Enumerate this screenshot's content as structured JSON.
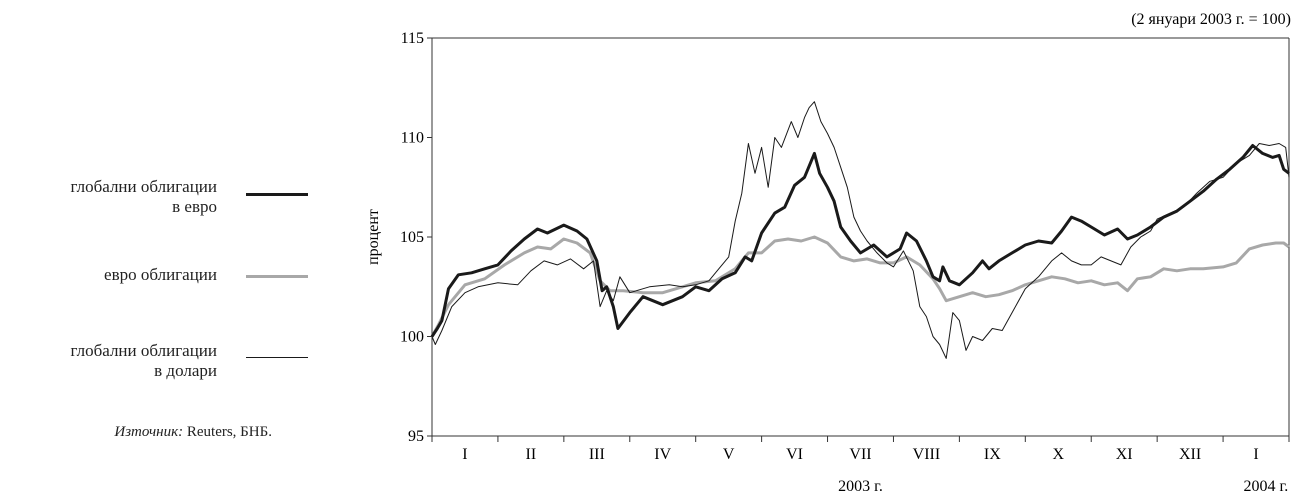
{
  "chart_data": {
    "type": "line",
    "note": "(2 януари 2003 г. = 100)",
    "ylabel": "процент",
    "ylim": [
      95,
      115
    ],
    "yticks": [
      95,
      100,
      105,
      110,
      115
    ],
    "xlim": [
      0,
      13
    ],
    "month_labels": [
      "I",
      "II",
      "III",
      "IV",
      "V",
      "VI",
      "VII",
      "VIII",
      "IX",
      "X",
      "XI",
      "XII",
      "I"
    ],
    "year_labels": [
      {
        "text": "2003 г.",
        "x": 6.5
      },
      {
        "text": "2004 г.",
        "x": 12.65
      }
    ],
    "legend_placement": "left",
    "grid": false,
    "series": [
      {
        "name": "глобални облигации в евро",
        "color": "#1a1a1a",
        "width": 3,
        "points": [
          [
            0,
            100
          ],
          [
            0.08,
            100.4
          ],
          [
            0.15,
            100.8
          ],
          [
            0.25,
            102.4
          ],
          [
            0.4,
            103.1
          ],
          [
            0.6,
            103.2
          ],
          [
            0.8,
            103.4
          ],
          [
            1.0,
            103.6
          ],
          [
            1.2,
            104.3
          ],
          [
            1.4,
            104.9
          ],
          [
            1.6,
            105.4
          ],
          [
            1.75,
            105.2
          ],
          [
            2.0,
            105.6
          ],
          [
            2.2,
            105.3
          ],
          [
            2.35,
            104.9
          ],
          [
            2.5,
            103.8
          ],
          [
            2.58,
            102.3
          ],
          [
            2.65,
            102.5
          ],
          [
            2.75,
            101.5
          ],
          [
            2.82,
            100.4
          ],
          [
            3.0,
            101.2
          ],
          [
            3.2,
            102.0
          ],
          [
            3.5,
            101.6
          ],
          [
            3.8,
            102.0
          ],
          [
            4.0,
            102.5
          ],
          [
            4.2,
            102.3
          ],
          [
            4.4,
            102.9
          ],
          [
            4.6,
            103.2
          ],
          [
            4.75,
            104.0
          ],
          [
            4.85,
            103.8
          ],
          [
            5.0,
            105.2
          ],
          [
            5.2,
            106.2
          ],
          [
            5.35,
            106.5
          ],
          [
            5.5,
            107.6
          ],
          [
            5.65,
            108.0
          ],
          [
            5.75,
            108.8
          ],
          [
            5.8,
            109.2
          ],
          [
            5.88,
            108.2
          ],
          [
            6.0,
            107.5
          ],
          [
            6.1,
            106.8
          ],
          [
            6.2,
            105.5
          ],
          [
            6.35,
            104.8
          ],
          [
            6.5,
            104.2
          ],
          [
            6.7,
            104.6
          ],
          [
            6.9,
            104.0
          ],
          [
            7.1,
            104.4
          ],
          [
            7.2,
            105.2
          ],
          [
            7.35,
            104.8
          ],
          [
            7.5,
            103.8
          ],
          [
            7.6,
            103.0
          ],
          [
            7.7,
            102.8
          ],
          [
            7.75,
            103.5
          ],
          [
            7.85,
            102.8
          ],
          [
            8.0,
            102.6
          ],
          [
            8.2,
            103.2
          ],
          [
            8.35,
            103.8
          ],
          [
            8.45,
            103.4
          ],
          [
            8.6,
            103.8
          ],
          [
            8.8,
            104.2
          ],
          [
            9.0,
            104.6
          ],
          [
            9.2,
            104.8
          ],
          [
            9.4,
            104.7
          ],
          [
            9.55,
            105.3
          ],
          [
            9.7,
            106.0
          ],
          [
            9.85,
            105.8
          ],
          [
            10.0,
            105.5
          ],
          [
            10.2,
            105.1
          ],
          [
            10.4,
            105.4
          ],
          [
            10.55,
            104.9
          ],
          [
            10.7,
            105.1
          ],
          [
            10.9,
            105.5
          ],
          [
            11.1,
            106.0
          ],
          [
            11.3,
            106.3
          ],
          [
            11.5,
            106.8
          ],
          [
            11.7,
            107.3
          ],
          [
            11.9,
            107.9
          ],
          [
            12.1,
            108.4
          ],
          [
            12.3,
            109.0
          ],
          [
            12.45,
            109.6
          ],
          [
            12.6,
            109.2
          ],
          [
            12.75,
            109.0
          ],
          [
            12.85,
            109.1
          ],
          [
            12.92,
            108.4
          ],
          [
            13.0,
            108.2
          ]
        ]
      },
      {
        "name": "евро облигации",
        "color": "#a8a8a8",
        "width": 3,
        "points": [
          [
            0,
            100
          ],
          [
            0.1,
            100.6
          ],
          [
            0.25,
            101.6
          ],
          [
            0.5,
            102.6
          ],
          [
            0.8,
            102.9
          ],
          [
            1.1,
            103.6
          ],
          [
            1.4,
            104.2
          ],
          [
            1.6,
            104.5
          ],
          [
            1.8,
            104.4
          ],
          [
            2.0,
            104.9
          ],
          [
            2.2,
            104.7
          ],
          [
            2.4,
            104.2
          ],
          [
            2.55,
            102.8
          ],
          [
            2.7,
            102.3
          ],
          [
            2.9,
            102.3
          ],
          [
            3.2,
            102.2
          ],
          [
            3.5,
            102.2
          ],
          [
            3.8,
            102.5
          ],
          [
            4.0,
            102.7
          ],
          [
            4.3,
            102.8
          ],
          [
            4.6,
            103.4
          ],
          [
            4.8,
            104.2
          ],
          [
            5.0,
            104.2
          ],
          [
            5.2,
            104.8
          ],
          [
            5.4,
            104.9
          ],
          [
            5.6,
            104.8
          ],
          [
            5.8,
            105.0
          ],
          [
            6.0,
            104.7
          ],
          [
            6.2,
            104.0
          ],
          [
            6.4,
            103.8
          ],
          [
            6.6,
            103.9
          ],
          [
            6.8,
            103.7
          ],
          [
            7.0,
            103.7
          ],
          [
            7.2,
            104.0
          ],
          [
            7.4,
            103.6
          ],
          [
            7.6,
            102.9
          ],
          [
            7.7,
            102.4
          ],
          [
            7.8,
            101.8
          ],
          [
            8.0,
            102.0
          ],
          [
            8.2,
            102.2
          ],
          [
            8.4,
            102.0
          ],
          [
            8.6,
            102.1
          ],
          [
            8.8,
            102.3
          ],
          [
            9.0,
            102.6
          ],
          [
            9.2,
            102.8
          ],
          [
            9.4,
            103.0
          ],
          [
            9.6,
            102.9
          ],
          [
            9.8,
            102.7
          ],
          [
            10.0,
            102.8
          ],
          [
            10.2,
            102.6
          ],
          [
            10.4,
            102.7
          ],
          [
            10.55,
            102.3
          ],
          [
            10.7,
            102.9
          ],
          [
            10.9,
            103.0
          ],
          [
            11.1,
            103.4
          ],
          [
            11.3,
            103.3
          ],
          [
            11.5,
            103.4
          ],
          [
            11.7,
            103.4
          ],
          [
            12.0,
            103.5
          ],
          [
            12.2,
            103.7
          ],
          [
            12.4,
            104.4
          ],
          [
            12.6,
            104.6
          ],
          [
            12.8,
            104.7
          ],
          [
            12.92,
            104.7
          ],
          [
            13.0,
            104.5
          ]
        ]
      },
      {
        "name": "глобални облигации в долари",
        "color": "#1a1a1a",
        "width": 1,
        "points": [
          [
            0,
            100
          ],
          [
            0.05,
            99.6
          ],
          [
            0.15,
            100.3
          ],
          [
            0.3,
            101.5
          ],
          [
            0.5,
            102.2
          ],
          [
            0.7,
            102.5
          ],
          [
            1.0,
            102.7
          ],
          [
            1.3,
            102.6
          ],
          [
            1.5,
            103.3
          ],
          [
            1.7,
            103.8
          ],
          [
            1.9,
            103.6
          ],
          [
            2.1,
            103.9
          ],
          [
            2.3,
            103.4
          ],
          [
            2.45,
            103.8
          ],
          [
            2.55,
            101.5
          ],
          [
            2.65,
            102.3
          ],
          [
            2.75,
            101.8
          ],
          [
            2.85,
            103.0
          ],
          [
            3.0,
            102.2
          ],
          [
            3.3,
            102.5
          ],
          [
            3.6,
            102.6
          ],
          [
            3.8,
            102.5
          ],
          [
            4.0,
            102.6
          ],
          [
            4.2,
            102.8
          ],
          [
            4.35,
            103.4
          ],
          [
            4.5,
            104.0
          ],
          [
            4.6,
            105.8
          ],
          [
            4.7,
            107.2
          ],
          [
            4.8,
            109.7
          ],
          [
            4.9,
            108.2
          ],
          [
            5.0,
            109.5
          ],
          [
            5.1,
            107.5
          ],
          [
            5.2,
            110.0
          ],
          [
            5.3,
            109.5
          ],
          [
            5.45,
            110.8
          ],
          [
            5.55,
            110.0
          ],
          [
            5.65,
            111.0
          ],
          [
            5.72,
            111.5
          ],
          [
            5.8,
            111.8
          ],
          [
            5.9,
            110.8
          ],
          [
            6.0,
            110.2
          ],
          [
            6.1,
            109.5
          ],
          [
            6.2,
            108.5
          ],
          [
            6.3,
            107.5
          ],
          [
            6.4,
            106.0
          ],
          [
            6.5,
            105.3
          ],
          [
            6.6,
            104.8
          ],
          [
            6.75,
            104.2
          ],
          [
            6.9,
            103.7
          ],
          [
            7.0,
            103.5
          ],
          [
            7.15,
            104.3
          ],
          [
            7.3,
            103.3
          ],
          [
            7.4,
            101.5
          ],
          [
            7.5,
            101.0
          ],
          [
            7.6,
            100.0
          ],
          [
            7.7,
            99.6
          ],
          [
            7.8,
            98.9
          ],
          [
            7.9,
            101.2
          ],
          [
            8.0,
            100.8
          ],
          [
            8.1,
            99.3
          ],
          [
            8.2,
            100.0
          ],
          [
            8.35,
            99.8
          ],
          [
            8.5,
            100.4
          ],
          [
            8.65,
            100.3
          ],
          [
            8.8,
            101.2
          ],
          [
            9.0,
            102.4
          ],
          [
            9.2,
            103.0
          ],
          [
            9.4,
            103.8
          ],
          [
            9.55,
            104.2
          ],
          [
            9.7,
            103.8
          ],
          [
            9.85,
            103.6
          ],
          [
            10.0,
            103.6
          ],
          [
            10.15,
            104.0
          ],
          [
            10.3,
            103.8
          ],
          [
            10.45,
            103.6
          ],
          [
            10.6,
            104.5
          ],
          [
            10.75,
            105.0
          ],
          [
            10.9,
            105.3
          ],
          [
            11.0,
            105.9
          ],
          [
            11.2,
            106.2
          ],
          [
            11.4,
            106.5
          ],
          [
            11.6,
            107.2
          ],
          [
            11.8,
            107.8
          ],
          [
            12.0,
            108.0
          ],
          [
            12.2,
            108.7
          ],
          [
            12.4,
            109.1
          ],
          [
            12.55,
            109.7
          ],
          [
            12.7,
            109.6
          ],
          [
            12.85,
            109.7
          ],
          [
            12.95,
            109.5
          ],
          [
            13.0,
            108.0
          ]
        ]
      }
    ]
  },
  "legend": [
    {
      "line1": "глобални облигации",
      "line2": "в евро"
    },
    {
      "line1": "евро облигации",
      "line2": ""
    },
    {
      "line1": "глобални облигации",
      "line2": "в долари"
    }
  ],
  "source": {
    "label": "Източник:",
    "text": " Reuters, БНБ."
  }
}
